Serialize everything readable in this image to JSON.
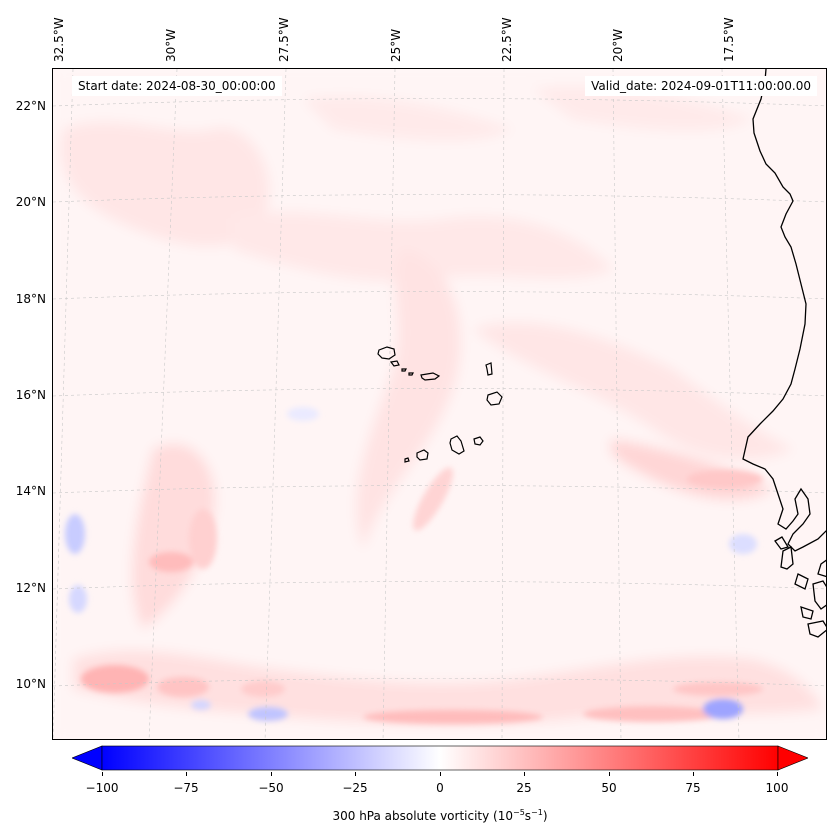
{
  "map": {
    "start_date": "Start date: 2024-08-30_00:00:00",
    "valid_date": "Valid_date: 2024-09-01T11:00:00.00",
    "lon_labels": [
      "32.5°W",
      "30°W",
      "27.5°W",
      "25°W",
      "22.5°W",
      "20°W",
      "17.5°W"
    ],
    "lat_labels": [
      "22°N",
      "20°N",
      "18°N",
      "16°N",
      "14°N",
      "12°N",
      "10°N"
    ],
    "projection": "lambert-conformal",
    "coastline_color": "#000000",
    "gridline_color": "#c8c8c8"
  },
  "colorbar": {
    "label_prefix": "300 hPa absolute vorticity (10",
    "label_exp1": "−5",
    "label_mid": "s",
    "label_exp2": "−1",
    "label_suffix": ")",
    "ticks": [
      "−100",
      "−75",
      "−50",
      "−25",
      "0",
      "25",
      "50",
      "75",
      "100"
    ],
    "cmap": "bwr",
    "range": [
      -100,
      100
    ],
    "low_color": "#0000ff",
    "mid_color": "#ffffff",
    "high_color": "#ff0000"
  }
}
